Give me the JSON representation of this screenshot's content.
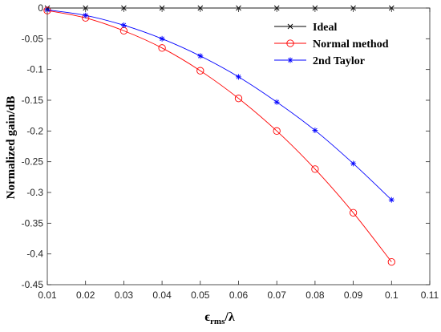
{
  "chart_data": {
    "type": "line",
    "x": [
      0.01,
      0.02,
      0.03,
      0.04,
      0.05,
      0.06,
      0.07,
      0.08,
      0.09,
      0.1
    ],
    "series": [
      {
        "name": "Ideal",
        "color": "#000000",
        "marker": "x",
        "values": [
          0,
          0,
          0,
          0,
          0,
          0,
          0,
          0,
          0,
          0
        ]
      },
      {
        "name": "Normal method",
        "color": "#ff0000",
        "marker": "circle",
        "values": [
          -0.004,
          -0.016,
          -0.037,
          -0.065,
          -0.102,
          -0.147,
          -0.2,
          -0.262,
          -0.333,
          -0.413
        ]
      },
      {
        "name": "2nd Taylor",
        "color": "#0000ff",
        "marker": "asterisk",
        "values": [
          -0.003,
          -0.012,
          -0.028,
          -0.05,
          -0.078,
          -0.112,
          -0.153,
          -0.199,
          -0.253,
          -0.312
        ]
      }
    ],
    "xlim": [
      0.01,
      0.11
    ],
    "ylim": [
      -0.45,
      0
    ],
    "xticks": [
      "0.01",
      "0.02",
      "0.03",
      "0.04",
      "0.05",
      "0.06",
      "0.07",
      "0.08",
      "0.09",
      "0.1",
      "0.11"
    ],
    "yticks": [
      "0",
      "-0.05",
      "-0.1",
      "-0.15",
      "-0.2",
      "-0.25",
      "-0.3",
      "-0.35",
      "-0.4",
      "-0.45"
    ],
    "ylabel": "Normalized gain/dB",
    "xlabel": {
      "main": "ϵ",
      "subscript": "rms",
      "suffix": "/λ"
    },
    "legend_position": "top-right",
    "grid": false
  }
}
